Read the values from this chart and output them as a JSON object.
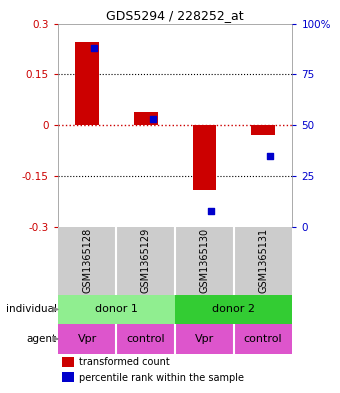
{
  "title": "GDS5294 / 228252_at",
  "categories": [
    "GSM1365128",
    "GSM1365129",
    "GSM1365130",
    "GSM1365131"
  ],
  "bar_values": [
    0.245,
    0.04,
    -0.19,
    -0.03
  ],
  "percentile_values": [
    88,
    53,
    8,
    35
  ],
  "bar_color": "#cc0000",
  "dot_color": "#0000cc",
  "ylim_left": [
    -0.3,
    0.3
  ],
  "ylim_right": [
    0,
    100
  ],
  "yticks_left": [
    -0.3,
    -0.15,
    0,
    0.15,
    0.3
  ],
  "yticks_right": [
    0,
    25,
    50,
    75,
    100
  ],
  "ytick_labels_right": [
    "0",
    "25",
    "50",
    "75",
    "100%"
  ],
  "hline_zero_color": "#cc0000",
  "hline_dotted_color": "#000000",
  "individual_colors": [
    "#90ee90",
    "#33cc33"
  ],
  "agent_color": "#dd55cc",
  "row_label_individual": "individual",
  "row_label_agent": "agent",
  "legend_bar": "transformed count",
  "legend_dot": "percentile rank within the sample",
  "bar_width": 0.4,
  "bg_color": "#ffffff",
  "plot_bg_color": "#ffffff",
  "gsm_bg_color": "#cccccc",
  "gsm_border_color": "#ffffff"
}
